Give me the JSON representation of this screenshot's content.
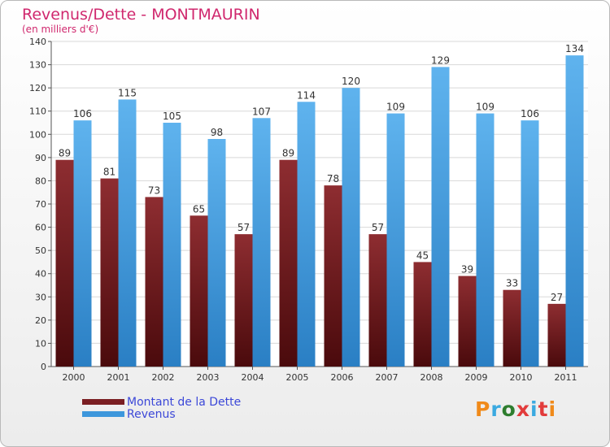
{
  "chart_data": {
    "type": "bar",
    "title": "Revenus/Dette - MONTMAURIN",
    "subtitle": "(en milliers d'€)",
    "categories": [
      "2000",
      "2001",
      "2002",
      "2003",
      "2004",
      "2005",
      "2006",
      "2007",
      "2008",
      "2009",
      "2010",
      "2011"
    ],
    "series": [
      {
        "name": "Montant de la Dette",
        "color": "#7a1e22",
        "values": [
          89,
          81,
          73,
          65,
          57,
          89,
          78,
          57,
          45,
          39,
          33,
          27
        ]
      },
      {
        "name": "Revenus",
        "color": "#3d97dc",
        "values": [
          106,
          115,
          105,
          98,
          107,
          114,
          120,
          109,
          129,
          109,
          106,
          134
        ]
      }
    ],
    "ylim": [
      0,
      140
    ],
    "ytick_step": 10,
    "grid": true,
    "legend_position": "bottom-left"
  },
  "logo": {
    "text": "Proxiti",
    "colors": [
      "#f08a1a",
      "#3aa9e0",
      "#2e7d2e",
      "#e23b3b",
      "#3aa9e0",
      "#e23b3b",
      "#f08a1a"
    ]
  }
}
